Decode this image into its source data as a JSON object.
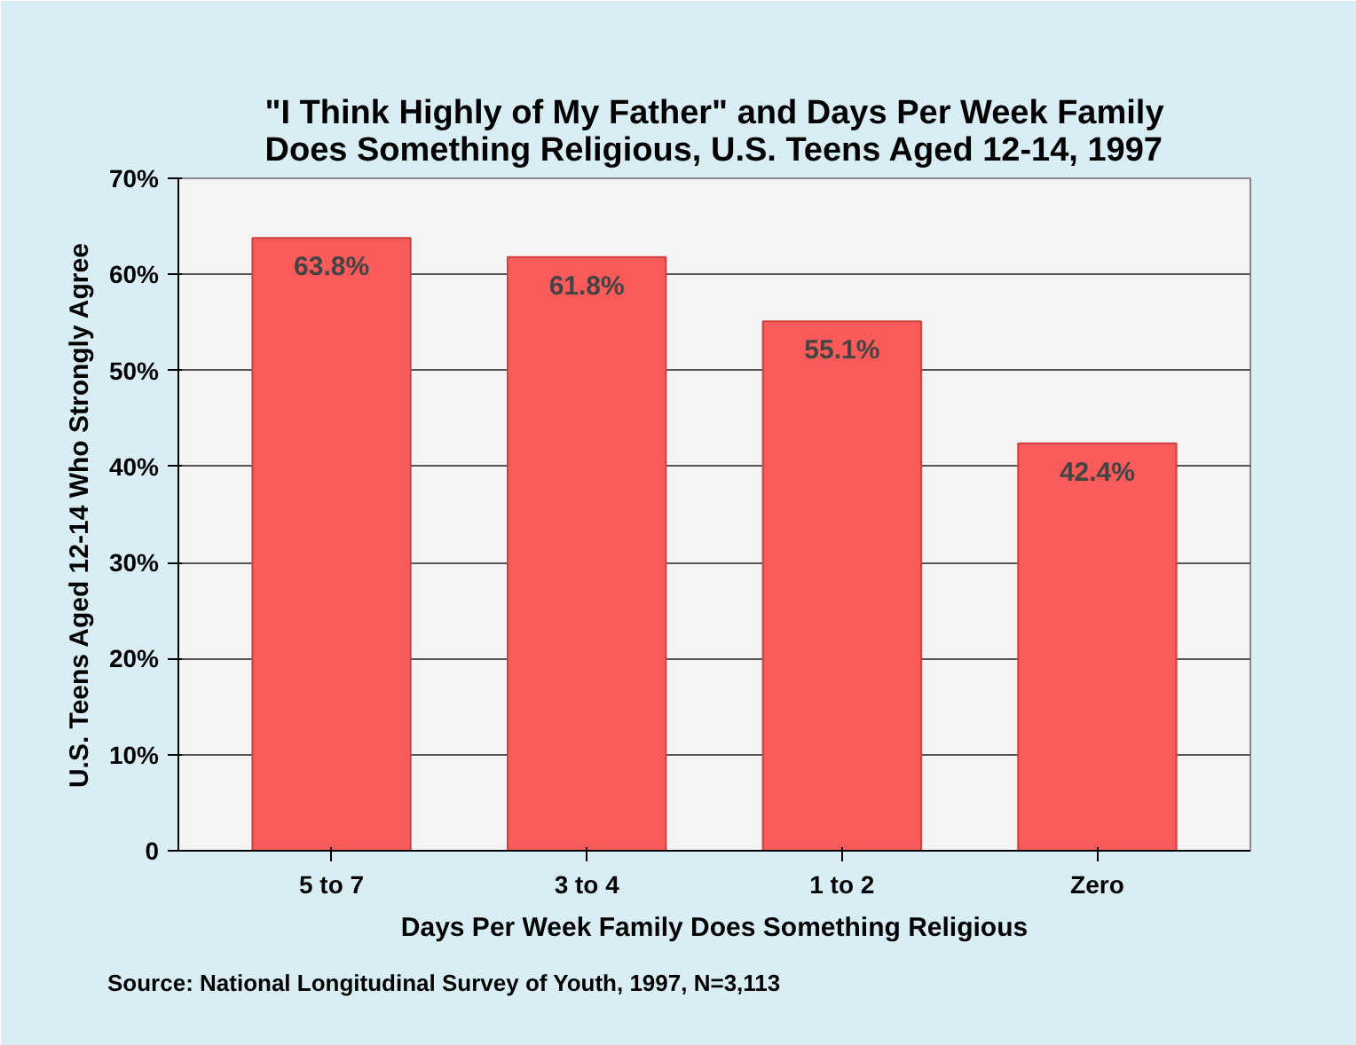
{
  "chart_data": {
    "type": "bar",
    "title": "\"I Think Highly of My Father\" and Days Per Week Family\nDoes Something Religious, U.S. Teens Aged 12-14, 1997",
    "xlabel": "Days Per Week Family Does Something Religious",
    "ylabel": "U.S. Teens Aged 12-14 Who Strongly Agree",
    "categories": [
      "5 to 7",
      "3 to 4",
      "1 to 2",
      "Zero"
    ],
    "values": [
      63.8,
      61.8,
      55.1,
      42.4
    ],
    "value_labels": [
      "63.8%",
      "61.8%",
      "55.1%",
      "42.4%"
    ],
    "color": "#f95a5a",
    "ylim": [
      0,
      70
    ],
    "yticks": [
      0,
      {
        "value": 10,
        "label": "10%"
      },
      {
        "value": 20,
        "label": "20%"
      },
      {
        "value": 30,
        "label": "30%"
      },
      {
        "value": 40,
        "label": "40%"
      },
      {
        "value": 50,
        "label": "50%"
      },
      {
        "value": 60,
        "label": "60%"
      },
      {
        "value": 70,
        "label": "70%"
      }
    ],
    "grid": "y",
    "annotations": [
      "Source: National Longitudinal Survey of Youth, 1997, N=3,113"
    ]
  }
}
